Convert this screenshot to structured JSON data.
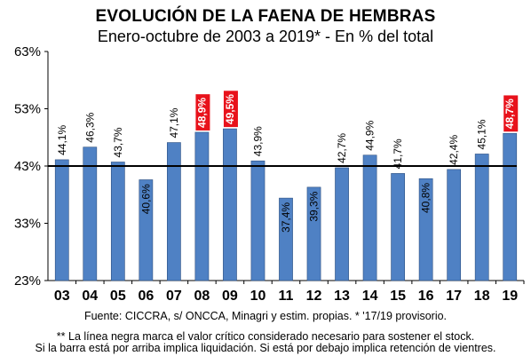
{
  "title": "EVOLUCIÓN DE LA FAENA DE HEMBRAS",
  "subtitle": "Enero-octubre de 2003 a 2019* - En % del total",
  "source": "Fuente: CICCRA, s/ ONCCA, Minagri y estim. propias. * '17/19  provisorio.",
  "note_line1": "** La línea negra marca el valor crítico considerado necesario para sostener el stock.",
  "note_line2": "Si la barra está por arriba implica liquidación. Si está por debajo implica retención de vientres.",
  "chart_data": {
    "type": "bar",
    "title": "EVOLUCIÓN DE LA FAENA DE HEMBRAS",
    "subtitle": "Enero-octubre de 2003 a 2019* - En % del total",
    "categories": [
      "03",
      "04",
      "05",
      "06",
      "07",
      "08",
      "09",
      "10",
      "11",
      "12",
      "13",
      "14",
      "15",
      "16",
      "17",
      "18",
      "19"
    ],
    "values": [
      44.1,
      46.3,
      43.7,
      40.6,
      47.1,
      48.9,
      49.5,
      43.9,
      37.4,
      39.3,
      42.7,
      44.9,
      41.7,
      40.8,
      42.4,
      45.1,
      48.7
    ],
    "value_labels": [
      "44,1%",
      "46,3%",
      "43,7%",
      "40,6%",
      "47,1%",
      "48,9%",
      "49,5%",
      "43,9%",
      "37,4%",
      "39,3%",
      "42,7%",
      "44,9%",
      "41,7%",
      "40,8%",
      "42,4%",
      "45,1%",
      "48,7%"
    ],
    "highlighted": [
      "08",
      "09",
      "19"
    ],
    "yticks": [
      23,
      33,
      43,
      53,
      63
    ],
    "ytick_labels": [
      "23%",
      "33%",
      "43%",
      "53%",
      "63%"
    ],
    "ylim": [
      23,
      63
    ],
    "reference_line": 43,
    "bar_color": "#4F81C4",
    "highlight_color": "#E8121B",
    "reference_color": "#000000",
    "grid": false
  }
}
